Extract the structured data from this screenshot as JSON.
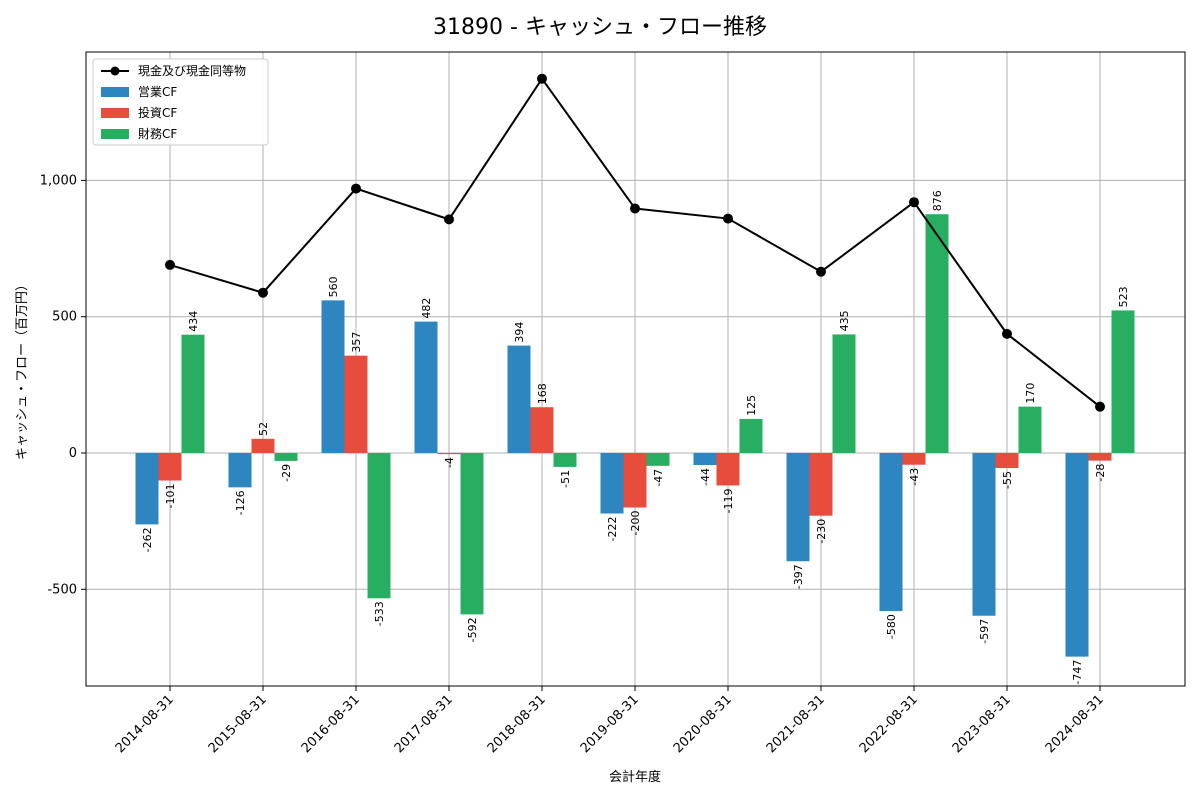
{
  "colors": {
    "operating": "#2e86c1",
    "investing": "#e74c3c",
    "financing": "#27ae60",
    "cash": "#000000"
  },
  "chart_data": {
    "type": "bar",
    "title": "31890 - キャッシュ・フロー推移",
    "xlabel": "会計年度",
    "ylabel": "キャッシュ・フロー（百万円）",
    "categories": [
      "2014-08-31",
      "2015-08-31",
      "2016-08-31",
      "2017-08-31",
      "2018-08-31",
      "2019-08-31",
      "2020-08-31",
      "2021-08-31",
      "2022-08-31",
      "2023-08-31",
      "2024-08-31"
    ],
    "ylim": [
      -850,
      1460
    ],
    "yticks": [
      -500,
      0,
      500,
      1000
    ],
    "ytick_labels": [
      "-500",
      "0",
      "500",
      "1,000"
    ],
    "grid": true,
    "legend_position": "top-left",
    "series": [
      {
        "name": "営業CF",
        "kind": "bar",
        "color": "#2e86c1",
        "values": [
          -262,
          -126,
          560,
          482,
          394,
          -222,
          -44,
          -397,
          -580,
          -597,
          -747
        ]
      },
      {
        "name": "投資CF",
        "kind": "bar",
        "color": "#e74c3c",
        "values": [
          -101,
          52,
          357,
          -4,
          168,
          -200,
          -119,
          -230,
          -43,
          -55,
          -28
        ]
      },
      {
        "name": "財務CF",
        "kind": "bar",
        "color": "#27ae60",
        "values": [
          434,
          -29,
          -533,
          -592,
          -51,
          -47,
          125,
          435,
          876,
          170,
          523
        ]
      },
      {
        "name": "現金及び現金同等物",
        "kind": "line",
        "color": "#000000",
        "values": [
          690,
          588,
          970,
          857,
          1373,
          897,
          860,
          665,
          920,
          437,
          170
        ]
      }
    ]
  }
}
